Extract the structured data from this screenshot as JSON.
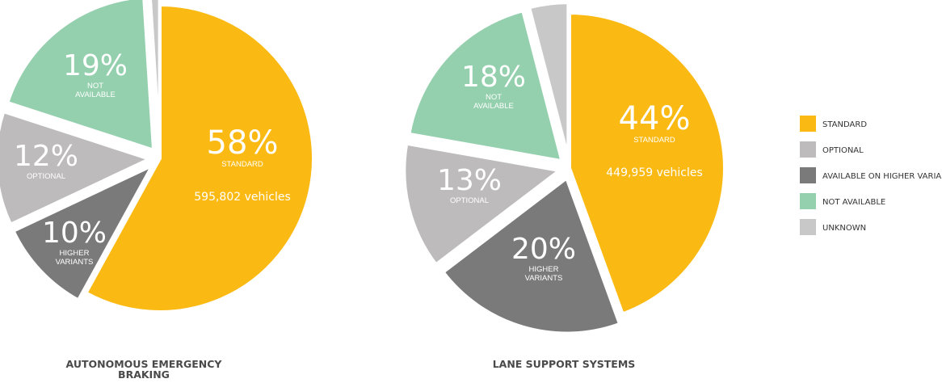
{
  "legend": {
    "items": [
      {
        "key": "standard",
        "label": "STANDARD",
        "color": "#FBBA13"
      },
      {
        "key": "optional",
        "label": "OPTIONAL",
        "color": "#BDBBBC"
      },
      {
        "key": "higher",
        "label": "AVAILABLE ON HIGHER VARIANTS",
        "color": "#7A7A7A"
      },
      {
        "key": "not_available",
        "label": "NOT AVAILABLE",
        "color": "#94D0AE"
      },
      {
        "key": "unknown",
        "label": "UNKNOWN",
        "color": "#C8C8C8"
      }
    ]
  },
  "chart_data": [
    {
      "type": "pie",
      "title": "AUTONOMOUS EMERGENCY BRAKING",
      "title_lines": [
        "AUTONOMOUS EMERGENCY",
        "BRAKING"
      ],
      "slices": [
        {
          "key": "standard",
          "value": 58,
          "pct_label": "58%",
          "sub_label": [
            "STANDARD"
          ],
          "extra_label": "595,802 vehicles"
        },
        {
          "key": "higher",
          "value": 10,
          "pct_label": "10%",
          "sub_label": [
            "HIGHER",
            "VARIANTS"
          ]
        },
        {
          "key": "optional",
          "value": 12,
          "pct_label": "12%",
          "sub_label": [
            "OPTIONAL"
          ]
        },
        {
          "key": "not_available",
          "value": 19,
          "pct_label": "19%",
          "sub_label": [
            "NOT",
            "AVAILABLE"
          ]
        },
        {
          "key": "unknown",
          "value": 1
        }
      ]
    },
    {
      "type": "pie",
      "title": "LANE SUPPORT SYSTEMS",
      "title_lines": [
        "LANE SUPPORT SYSTEMS"
      ],
      "slices": [
        {
          "key": "standard",
          "value": 44,
          "pct_label": "44%",
          "sub_label": [
            "STANDARD"
          ],
          "extra_label": "449,959 vehicles"
        },
        {
          "key": "higher",
          "value": 20,
          "pct_label": "20%",
          "sub_label": [
            "HIGHER",
            "VARIANTS"
          ]
        },
        {
          "key": "optional",
          "value": 13,
          "pct_label": "13%",
          "sub_label": [
            "OPTIONAL"
          ]
        },
        {
          "key": "not_available",
          "value": 18,
          "pct_label": "18%",
          "sub_label": [
            "NOT",
            "AVAILABLE"
          ]
        },
        {
          "key": "unknown",
          "value": 4
        }
      ]
    }
  ]
}
